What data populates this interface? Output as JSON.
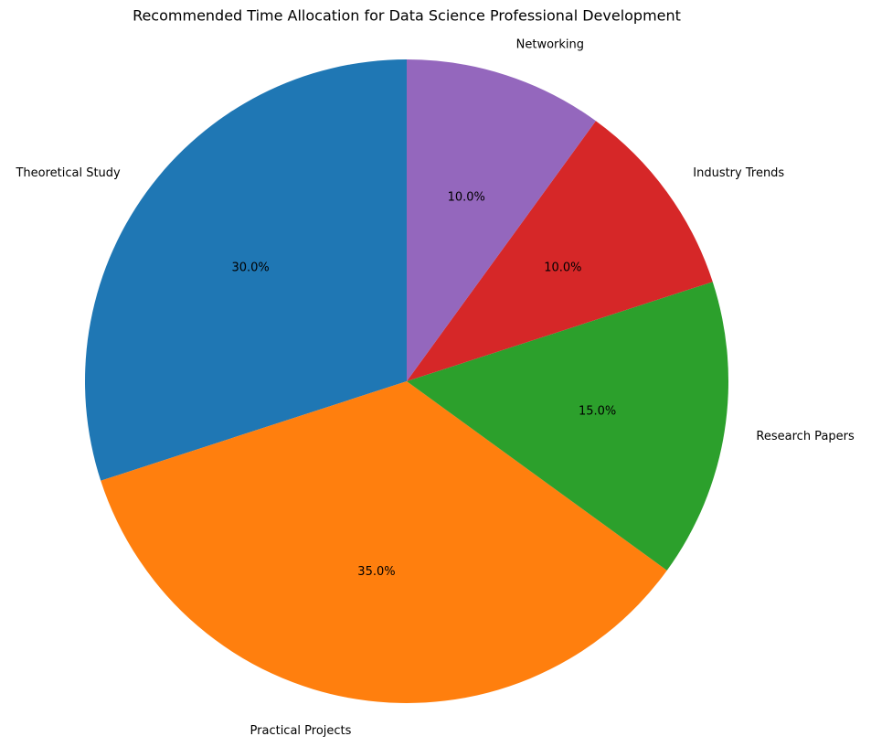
{
  "chart_data": {
    "type": "pie",
    "title": "Recommended Time Allocation for Data Science Professional Development",
    "categories": [
      "Theoretical Study",
      "Practical Projects",
      "Research Papers",
      "Industry Trends",
      "Networking"
    ],
    "values": [
      30,
      35,
      15,
      10,
      10
    ],
    "value_labels": [
      "30.0%",
      "35.0%",
      "15.0%",
      "10.0%",
      "10.0%"
    ],
    "colors": [
      "#1f77b4",
      "#ff7f0e",
      "#2ca02c",
      "#d62728",
      "#9467bd"
    ]
  }
}
